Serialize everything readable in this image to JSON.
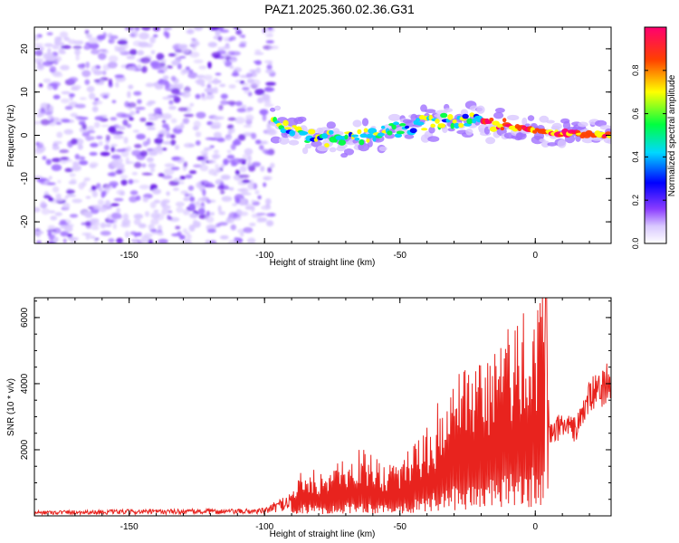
{
  "title": "PAZ1.2025.360.02.36.G31",
  "chart_data": [
    {
      "type": "heatmap",
      "name": "spectrogram",
      "xlabel": "Height of straight line (km)",
      "ylabel": "Frequency (Hz)",
      "xlim": [
        -185,
        28
      ],
      "ylim": [
        -25,
        25
      ],
      "xticks": [
        -150,
        -100,
        -50,
        0
      ],
      "yticks": [
        -20,
        -10,
        0,
        10,
        20
      ],
      "tick_labels_x": [
        "-150",
        "-100",
        "-50",
        "0"
      ],
      "tick_labels_y": [
        "-20",
        "-10",
        "0",
        "10",
        "20"
      ],
      "colorbar": {
        "label": "Normalized spectral amplitude",
        "range": [
          0,
          1
        ],
        "ticks": [
          0.0,
          0.2,
          0.4,
          0.6,
          0.8
        ],
        "tick_labels": [
          "0.0",
          "0.2",
          "0.4",
          "0.6",
          "0.8"
        ],
        "colormap": "rainbow_white_purple_blue_green_yellow_red_magenta"
      },
      "features": {
        "noise_region_x": [
          -185,
          -97
        ],
        "noise_region_freq": [
          -25,
          25
        ],
        "signal_ridge": [
          {
            "x": -97,
            "freq": 3
          },
          {
            "x": -80,
            "freq": -1
          },
          {
            "x": -60,
            "freq": 0
          },
          {
            "x": -40,
            "freq": 3
          },
          {
            "x": -20,
            "freq": 3.5
          },
          {
            "x": -10,
            "freq": 2
          },
          {
            "x": 0,
            "freq": 1
          },
          {
            "x": 10,
            "freq": 0.5
          },
          {
            "x": 28,
            "freq": 0
          }
        ]
      },
      "colors": [
        "#ffffff",
        "#d9c8ff",
        "#a070ff",
        "#6a1ee8",
        "#0000ff",
        "#00d0ff",
        "#00ff40",
        "#ffff00",
        "#ff4000",
        "#ff0070"
      ]
    },
    {
      "type": "line",
      "name": "snr",
      "xlabel": "Height of straight line (km)",
      "ylabel": "SNR (10 * v/v)",
      "xlim": [
        -185,
        28
      ],
      "ylim": [
        0,
        6600
      ],
      "xticks": [
        -150,
        -100,
        -50,
        0
      ],
      "yticks": [
        2000,
        4000,
        6000
      ],
      "tick_labels_x": [
        "-150",
        "-100",
        "-50",
        "0"
      ],
      "tick_labels_y": [
        "2000",
        "4000",
        "6000"
      ],
      "color": "#e8231e",
      "series": [
        {
          "name": "SNR",
          "x": [
            -185,
            -170,
            -150,
            -130,
            -110,
            -100,
            -95,
            -90,
            -85,
            -80,
            -75,
            -70,
            -65,
            -60,
            -55,
            -50,
            -45,
            -40,
            -35,
            -30,
            -25,
            -20,
            -15,
            -10,
            -5,
            0,
            3,
            5,
            10,
            15,
            20,
            25,
            28
          ],
          "y": [
            100,
            110,
            120,
            130,
            130,
            150,
            300,
            500,
            1200,
            1000,
            1100,
            1300,
            1500,
            1300,
            1200,
            1300,
            1600,
            2000,
            2600,
            3000,
            3200,
            3500,
            3800,
            4200,
            4600,
            5000,
            5600,
            2400,
            2800,
            2600,
            3600,
            3900,
            4200
          ]
        }
      ],
      "peak": {
        "x": 4,
        "y": 6600
      }
    }
  ]
}
